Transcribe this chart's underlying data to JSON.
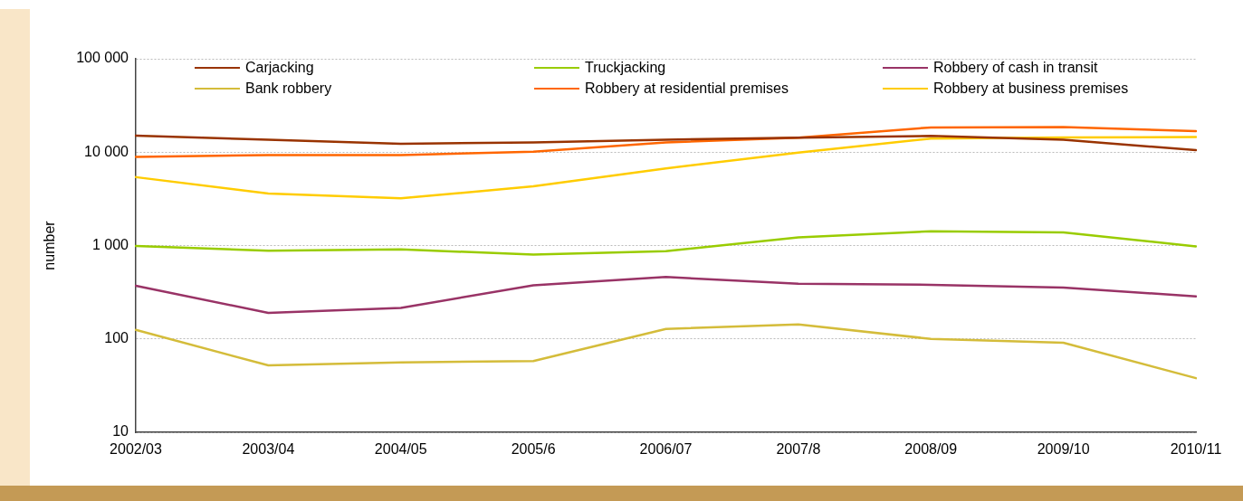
{
  "chart_data": {
    "type": "line",
    "ylabel": "number",
    "log": "y",
    "grid": "y",
    "legend": "top",
    "marker": "none",
    "line_style": "solid",
    "categories": [
      "2002/03",
      "2003/04",
      "2004/05",
      "2005/6",
      "2006/07",
      "2007/8",
      "2008/09",
      "2009/10",
      "2010/11"
    ],
    "ylim": [
      10,
      100000
    ],
    "yticks": [
      10,
      100,
      {
        "value": 1000,
        "label": "1 000"
      },
      {
        "value": 10000,
        "label": "10 000"
      },
      {
        "value": 100000,
        "label": "100 000"
      }
    ],
    "series": [
      {
        "name": "Carjacking",
        "color": "#993300",
        "values": [
          15000,
          13600,
          12300,
          12700,
          13600,
          14300,
          14900,
          13600,
          10500
        ]
      },
      {
        "name": "Truckjacking",
        "color": "#99cc00",
        "values": [
          990,
          880,
          910,
          800,
          870,
          1220,
          1420,
          1380,
          980
        ]
      },
      {
        "name": "Robbery of cash in transit",
        "color": "#993366",
        "values": [
          370,
          190,
          215,
          375,
          460,
          390,
          380,
          355,
          285
        ]
      },
      {
        "name": "Bank robbery",
        "color": "#d4bc3a",
        "values": [
          125,
          52,
          56,
          58,
          128,
          143,
          100,
          91,
          38
        ]
      },
      {
        "name": "Robbery at residential premises",
        "color": "#ff6600",
        "values": [
          8900,
          9300,
          9300,
          10100,
          12700,
          14300,
          18400,
          18600,
          16800
        ]
      },
      {
        "name": "Robbery at business premises",
        "color": "#ffcc00",
        "values": [
          5400,
          3600,
          3200,
          4300,
          6700,
          9900,
          14000,
          14400,
          14500
        ]
      }
    ]
  }
}
